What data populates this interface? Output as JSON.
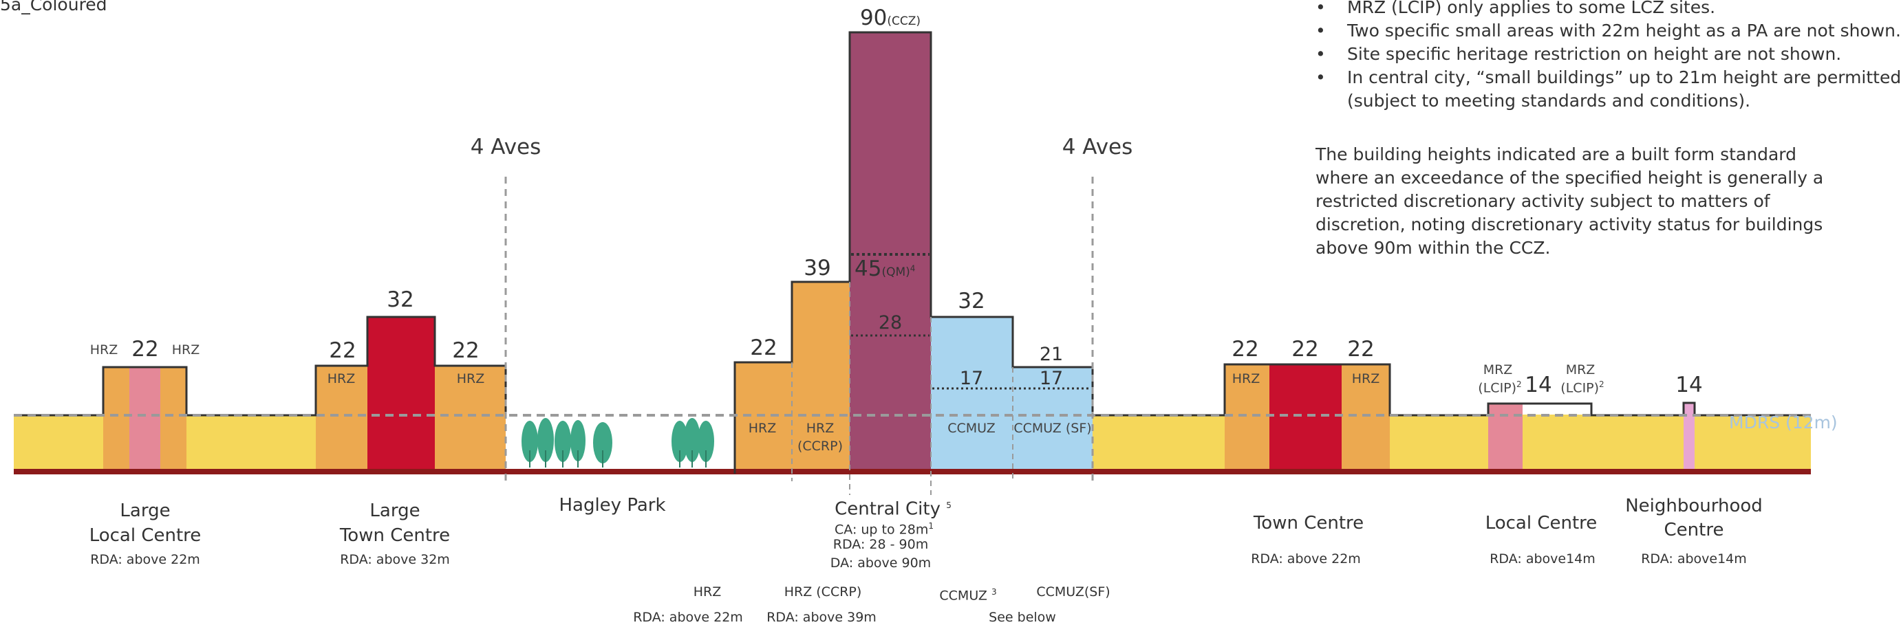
{
  "caption": "5a_Coloured",
  "notes": [
    "MRZ (LCIP) only applies to some LCZ sites.",
    "Two specific small areas with 22m height as a PA are not shown.",
    "Site specific heritage restriction on height are not shown.",
    "In central city, “small buildings” up to 21m height are permitted",
    "(subject to meeting standards and conditions)."
  ],
  "paragraph": "The building heights indicated are a built form standard where an exceedance of the specified height is generally a restricted discretionary activity subject to matters of discretion, noting discretionary activity status for buildings above 90m within the CCZ.",
  "aves_left": "4 Aves",
  "aves_right": "4 Aves",
  "mdrs_label": "MDRS (12m)",
  "colors": {
    "mdrs": "#f5d75a",
    "hrz": "#eca950",
    "town_centre": "#c8102e",
    "local_centre": "#e48898",
    "central_city": "#9e4a6e",
    "ccmuz": "#a9d5ef",
    "neighbourhood": "#e8a6d2",
    "tree": "#3ea887",
    "ground": "#8b1a1a"
  },
  "large_local": {
    "height": "22",
    "hrz_left": "HRZ",
    "hrz_right": "HRZ",
    "name_1": "Large",
    "name_2": "Local Centre",
    "rda": "RDA: above 22m"
  },
  "large_town": {
    "hrz_left_h": "22",
    "centre_h": "32",
    "hrz_right_h": "22",
    "hrz_left": "HRZ",
    "hrz_right": "HRZ",
    "name_1": "Large",
    "name_2": "Town Centre",
    "rda": "RDA: above 32m"
  },
  "hagley": {
    "name": "Hagley Park"
  },
  "central": {
    "hrz_h": "22",
    "hrz_label": "HRZ",
    "ccrp_h": "39",
    "ccrp_label_1": "HRZ",
    "ccrp_label_2": "(CCRP)",
    "ccz_h": "90",
    "ccz_tag": "(CCZ)",
    "qm_h": "45",
    "qm_tag": "(QM)",
    "qm_sup": "4",
    "inner_h": "28",
    "ccmuz_h": "32",
    "ccmuz_inner": "17",
    "ccmuz_label": "CCMUZ",
    "ccmuzsf_h": "21",
    "ccmuzsf_inner": "17",
    "ccmuzsf_label": "CCMUZ (SF)",
    "name": "Central City",
    "name_sup": "5",
    "ca": "CA: up to 28m",
    "ca_sup": "1",
    "rda": "RDA: 28 - 90m",
    "da": "DA: above 90m",
    "sub_hrz": "HRZ",
    "sub_hrz_rda": "RDA: above 22m",
    "sub_ccrp": "HRZ (CCRP)",
    "sub_ccrp_rda": "RDA: above 39m",
    "sub_ccmuz": "CCMUZ",
    "sub_ccmuz_sup": "3",
    "sub_ccmuzsf": "CCMUZ(SF)",
    "see_below": "See below"
  },
  "town": {
    "h1": "22",
    "h2": "22",
    "h3": "22",
    "hrz_left": "HRZ",
    "hrz_right": "HRZ",
    "name": "Town Centre",
    "rda": "RDA: above 22m"
  },
  "local": {
    "mrz_1": "MRZ",
    "lcip_1": "(LCIP)",
    "lcip_sup_1": "2",
    "height": "14",
    "mrz_2": "MRZ",
    "lcip_2": "(LCIP)",
    "lcip_sup_2": "2",
    "name": "Local Centre",
    "rda": "RDA: above14m"
  },
  "neighbourhood": {
    "height": "14",
    "name_1": "Neighbourhood",
    "name_2": "Centre",
    "rda": "RDA: above14m"
  }
}
